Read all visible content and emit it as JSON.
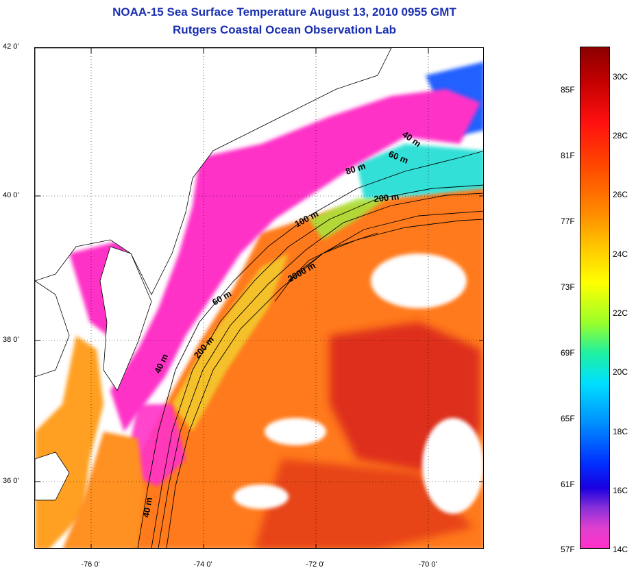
{
  "title": {
    "line1": "NOAA-15 Sea Surface Temperature August 13, 2010 0955 GMT",
    "line2": "Rutgers Coastal Ocean Observation Lab"
  },
  "axes": {
    "latitude_ticks": [
      "42 0'",
      "40 0'",
      "38 0'",
      "36 0'"
    ],
    "longitude_ticks": [
      "-76 0'",
      "-74 0'",
      "-72 0'",
      "-70 0'"
    ]
  },
  "contours": {
    "labels": [
      "40 m",
      "60 m",
      "80 m",
      "200 m",
      "100 m",
      "2000 m",
      "60 m",
      "200 m",
      "40 m",
      "40 m"
    ]
  },
  "colorbar": {
    "fahrenheit": [
      "85F",
      "81F",
      "77F",
      "73F",
      "69F",
      "65F",
      "61F",
      "57F"
    ],
    "celsius": [
      "30C",
      "28C",
      "26C",
      "24C",
      "22C",
      "20C",
      "18C",
      "16C",
      "14C"
    ]
  },
  "colors": {
    "title": "#1a2fb0",
    "warm_ocean": "#ff7a1a",
    "hot_ocean": "#d01010",
    "cold_shelf": "#ff30c8",
    "cool_water": "#20e0e0",
    "land_cloud": "#ffffff"
  }
}
